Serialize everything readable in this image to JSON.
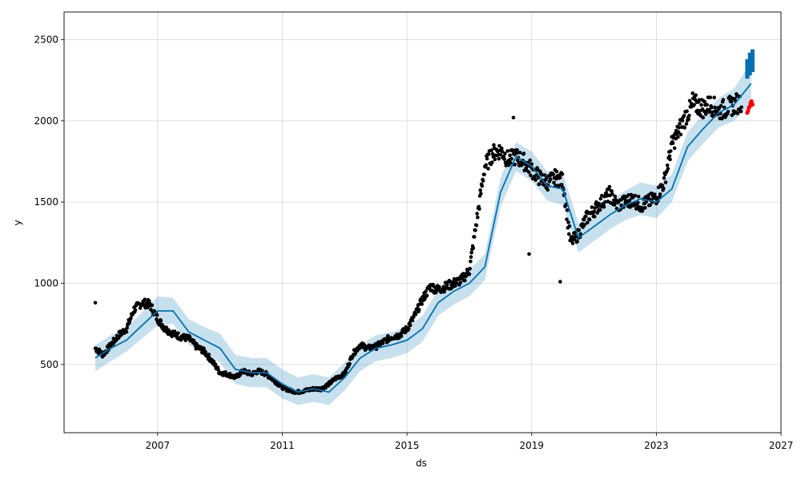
{
  "chart_data": {
    "type": "line",
    "title": "",
    "xlabel": "ds",
    "ylabel": "y",
    "xlim": [
      "2004-01-01",
      "2026-12-31"
    ],
    "ylim": [
      80,
      2670
    ],
    "x_ticks": [
      "2007",
      "2011",
      "2015",
      "2019",
      "2023",
      "2027"
    ],
    "y_ticks": [
      500,
      1000,
      1500,
      2000,
      2500
    ],
    "grid": true,
    "legend": "none",
    "colors": {
      "forecast": "#0072B2",
      "interval": "#0072B2",
      "observed": "#000000",
      "recent": "#FF0000"
    },
    "series": [
      {
        "role": "forecast-line",
        "x": [
          "2005-01-01",
          "2005-07-01",
          "2006-01-01",
          "2006-07-01",
          "2007-01-01",
          "2007-07-01",
          "2008-01-01",
          "2008-07-01",
          "2009-01-01",
          "2009-07-01",
          "2010-01-01",
          "2010-07-01",
          "2011-01-01",
          "2011-07-01",
          "2012-01-01",
          "2012-07-01",
          "2013-01-01",
          "2013-07-01",
          "2014-01-01",
          "2014-07-01",
          "2015-01-01",
          "2015-07-01",
          "2016-01-01",
          "2016-07-01",
          "2017-01-01",
          "2017-07-01",
          "2018-01-01",
          "2018-07-01",
          "2019-01-01",
          "2019-07-01",
          "2020-01-01",
          "2020-07-01",
          "2021-01-01",
          "2021-07-01",
          "2022-01-01",
          "2022-07-01",
          "2023-01-01",
          "2023-07-01",
          "2024-01-01",
          "2024-07-01",
          "2025-01-01",
          "2025-07-01",
          "2026-01-15"
        ],
        "y": [
          540,
          600,
          650,
          740,
          830,
          830,
          700,
          650,
          600,
          470,
          450,
          450,
          380,
          330,
          350,
          330,
          420,
          540,
          600,
          620,
          650,
          720,
          880,
          950,
          1000,
          1100,
          1560,
          1780,
          1720,
          1600,
          1580,
          1280,
          1350,
          1420,
          1480,
          1520,
          1500,
          1580,
          1840,
          1950,
          2050,
          2100,
          2230
        ],
        "band_low": [
          460,
          520,
          580,
          660,
          740,
          750,
          620,
          570,
          510,
          380,
          360,
          360,
          290,
          250,
          270,
          250,
          340,
          460,
          520,
          540,
          570,
          640,
          800,
          870,
          920,
          1020,
          1470,
          1690,
          1630,
          1510,
          1480,
          1190,
          1260,
          1330,
          1390,
          1420,
          1400,
          1500,
          1750,
          1860,
          1960,
          2000,
          2100
        ],
        "band_high": [
          620,
          680,
          730,
          820,
          920,
          910,
          780,
          730,
          690,
          560,
          540,
          540,
          470,
          420,
          440,
          420,
          510,
          620,
          680,
          700,
          730,
          800,
          960,
          1030,
          1080,
          1180,
          1650,
          1870,
          1810,
          1690,
          1680,
          1370,
          1440,
          1510,
          1570,
          1620,
          1600,
          1670,
          1930,
          2040,
          2140,
          2200,
          2360
        ]
      },
      {
        "role": "observed-points",
        "x": [
          "2005-01-01",
          "2005-04-01",
          "2005-07-01",
          "2005-10-01",
          "2006-01-01",
          "2006-04-01",
          "2006-07-01",
          "2006-10-01",
          "2007-01-01",
          "2007-04-01",
          "2007-07-01",
          "2007-10-01",
          "2008-01-01",
          "2008-04-01",
          "2008-07-01",
          "2008-10-01",
          "2009-01-01",
          "2009-04-01",
          "2009-07-01",
          "2009-10-01",
          "2010-01-01",
          "2010-04-01",
          "2010-07-01",
          "2010-10-01",
          "2011-01-01",
          "2011-04-01",
          "2011-07-01",
          "2011-10-01",
          "2012-01-01",
          "2012-04-01",
          "2012-07-01",
          "2012-10-01",
          "2013-01-01",
          "2013-04-01",
          "2013-07-01",
          "2013-10-01",
          "2014-01-01",
          "2014-04-01",
          "2014-07-01",
          "2014-10-01",
          "2015-01-01",
          "2015-04-01",
          "2015-07-01",
          "2015-10-01",
          "2016-01-01",
          "2016-04-01",
          "2016-07-01",
          "2016-10-01",
          "2017-01-01",
          "2017-04-01",
          "2017-07-01",
          "2017-10-01",
          "2018-01-01",
          "2018-04-01",
          "2018-07-01",
          "2018-10-01",
          "2019-01-01",
          "2019-04-01",
          "2019-07-01",
          "2019-10-01",
          "2020-01-01",
          "2020-04-01",
          "2020-07-01",
          "2020-10-01",
          "2021-01-01",
          "2021-04-01",
          "2021-07-01",
          "2021-10-01",
          "2022-01-01",
          "2022-04-01",
          "2022-07-01",
          "2022-10-01",
          "2023-01-01",
          "2023-04-01",
          "2023-07-01",
          "2023-10-01",
          "2024-01-01",
          "2024-04-01",
          "2024-07-01",
          "2024-10-01",
          "2025-01-01",
          "2025-04-01",
          "2025-07-01",
          "2025-10-01"
        ],
        "y": [
          600,
          560,
          620,
          680,
          720,
          840,
          880,
          870,
          780,
          720,
          690,
          670,
          660,
          610,
          580,
          520,
          450,
          440,
          420,
          460,
          440,
          460,
          440,
          400,
          360,
          340,
          330,
          340,
          350,
          350,
          380,
          420,
          440,
          560,
          620,
          600,
          610,
          640,
          670,
          680,
          720,
          800,
          900,
          980,
          960,
          980,
          1000,
          1020,
          1080,
          1400,
          1720,
          1800,
          1820,
          1760,
          1780,
          1750,
          1700,
          1650,
          1620,
          1650,
          1630,
          1250,
          1300,
          1400,
          1450,
          1500,
          1550,
          1480,
          1500,
          1520,
          1480,
          1500,
          1530,
          1620,
          1850,
          1950,
          2050,
          2100,
          2080,
          2100,
          2060,
          2080,
          2100,
          2120
        ],
        "outliers": [
          {
            "x": "2005-01-01",
            "y": 880
          },
          {
            "x": "2018-06-01",
            "y": 2020
          },
          {
            "x": "2018-12-01",
            "y": 1180
          },
          {
            "x": "2019-12-01",
            "y": 1010
          },
          {
            "x": "2024-03-01",
            "y": 2170
          }
        ]
      },
      {
        "role": "recent-points",
        "x": [
          "2025-12-01",
          "2025-12-10",
          "2025-12-20",
          "2026-01-01",
          "2026-01-10",
          "2026-01-20",
          "2026-02-01"
        ],
        "y": [
          2050,
          2060,
          2080,
          2090,
          2110,
          2120,
          2100
        ]
      },
      {
        "role": "forecast-highlight",
        "x": [
          "2025-12-01",
          "2026-01-01",
          "2026-02-01"
        ],
        "y_low": [
          2260,
          2280,
          2300
        ],
        "y_high": [
          2380,
          2420,
          2440
        ]
      }
    ]
  }
}
